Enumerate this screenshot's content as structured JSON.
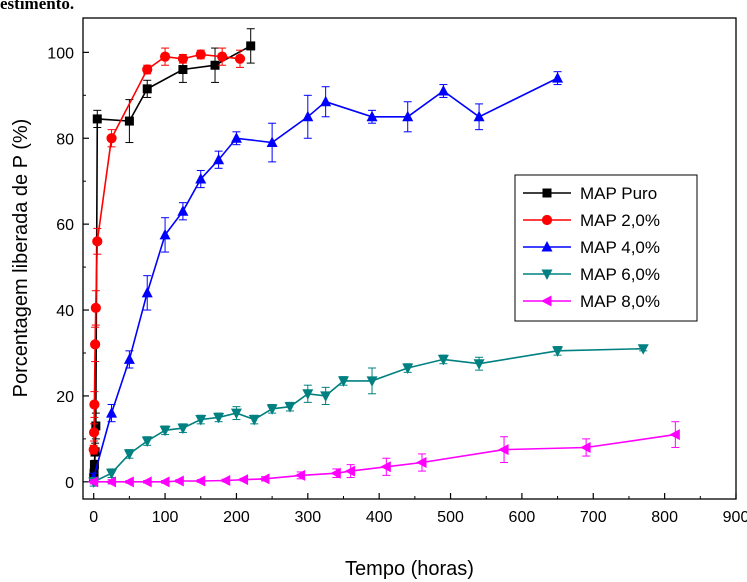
{
  "page": {
    "top_text": "estimento."
  },
  "chart_data": {
    "type": "line",
    "title": "",
    "xlabel": "Tempo (horas)",
    "ylabel": "Porcentagem liberada de P (%)",
    "xlim": [
      -15,
      900
    ],
    "ylim": [
      -4,
      108
    ],
    "xticks": [
      0,
      100,
      200,
      300,
      400,
      500,
      600,
      700,
      800,
      900
    ],
    "yticks": [
      0,
      20,
      40,
      60,
      80,
      100
    ],
    "grid": false,
    "legend": "right",
    "series": [
      {
        "name": "MAP Puro",
        "color": "#000000",
        "marker": "square",
        "x": [
          0,
          0.5,
          1,
          2,
          3,
          5,
          50,
          75,
          125,
          170,
          220
        ],
        "y": [
          1,
          2,
          4,
          7,
          13,
          84.5,
          84,
          91.5,
          96,
          97,
          101.5
        ],
        "err": [
          1,
          1,
          2,
          2,
          3,
          2,
          5,
          2,
          3,
          4,
          4
        ]
      },
      {
        "name": "MAP 2,0%",
        "color": "#ff0000",
        "marker": "circle",
        "x": [
          0,
          0.5,
          1,
          2,
          3,
          5,
          25,
          75,
          100,
          125,
          150,
          180,
          205
        ],
        "y": [
          7.5,
          11.5,
          18,
          32,
          40.5,
          56,
          80,
          96,
          99,
          98.5,
          99.5,
          99,
          98.5
        ],
        "err": [
          1,
          2,
          3,
          4,
          4,
          3,
          2,
          1,
          2,
          1,
          1,
          2,
          2
        ]
      },
      {
        "name": "MAP 4,0%",
        "color": "#0000ff",
        "marker": "triangle-up",
        "x": [
          0,
          25,
          50,
          75,
          100,
          125,
          150,
          175,
          200,
          250,
          300,
          325,
          390,
          440,
          490,
          540,
          650
        ],
        "y": [
          1,
          16,
          28.5,
          44,
          57.5,
          63,
          70.5,
          75,
          80,
          79,
          85,
          88.5,
          85,
          85,
          91,
          85,
          94
        ],
        "err": [
          1,
          2,
          2,
          4,
          4,
          2,
          2,
          2,
          1.5,
          4.5,
          5,
          3.5,
          1.5,
          3.5,
          1.5,
          3,
          1.5
        ]
      },
      {
        "name": "MAP 6,0%",
        "color": "#008080",
        "marker": "triangle-down",
        "x": [
          0,
          25,
          50,
          75,
          100,
          125,
          150,
          175,
          200,
          225,
          250,
          275,
          300,
          325,
          350,
          390,
          440,
          490,
          540,
          650,
          770
        ],
        "y": [
          0,
          2,
          6.5,
          9.5,
          12,
          12.5,
          14.5,
          15,
          16,
          14.5,
          17,
          17.5,
          20.5,
          20,
          23.5,
          23.5,
          26.5,
          28.5,
          27.5,
          30.5,
          31
        ],
        "err": [
          1,
          1,
          1,
          1,
          1,
          1,
          1,
          1,
          1.5,
          1,
          1,
          1,
          2,
          2,
          1,
          3,
          1,
          1,
          1.5,
          1,
          0.5
        ]
      },
      {
        "name": "MAP 8,0%",
        "color": "#ff00ff",
        "marker": "triangle-left",
        "x": [
          0,
          25,
          50,
          75,
          100,
          120,
          150,
          185,
          210,
          240,
          290,
          340,
          360,
          410,
          460,
          575,
          690,
          815
        ],
        "y": [
          0,
          0,
          0,
          0,
          0,
          0.2,
          0.2,
          0.3,
          0.5,
          0.7,
          1.5,
          2,
          2.5,
          3.5,
          4.5,
          7.5,
          8,
          11
        ],
        "err": [
          0.5,
          0.5,
          0.3,
          0.3,
          0.3,
          0.3,
          0.3,
          0.3,
          0.3,
          0.5,
          0.8,
          1,
          1.5,
          2,
          2,
          3,
          2,
          3
        ]
      }
    ]
  }
}
